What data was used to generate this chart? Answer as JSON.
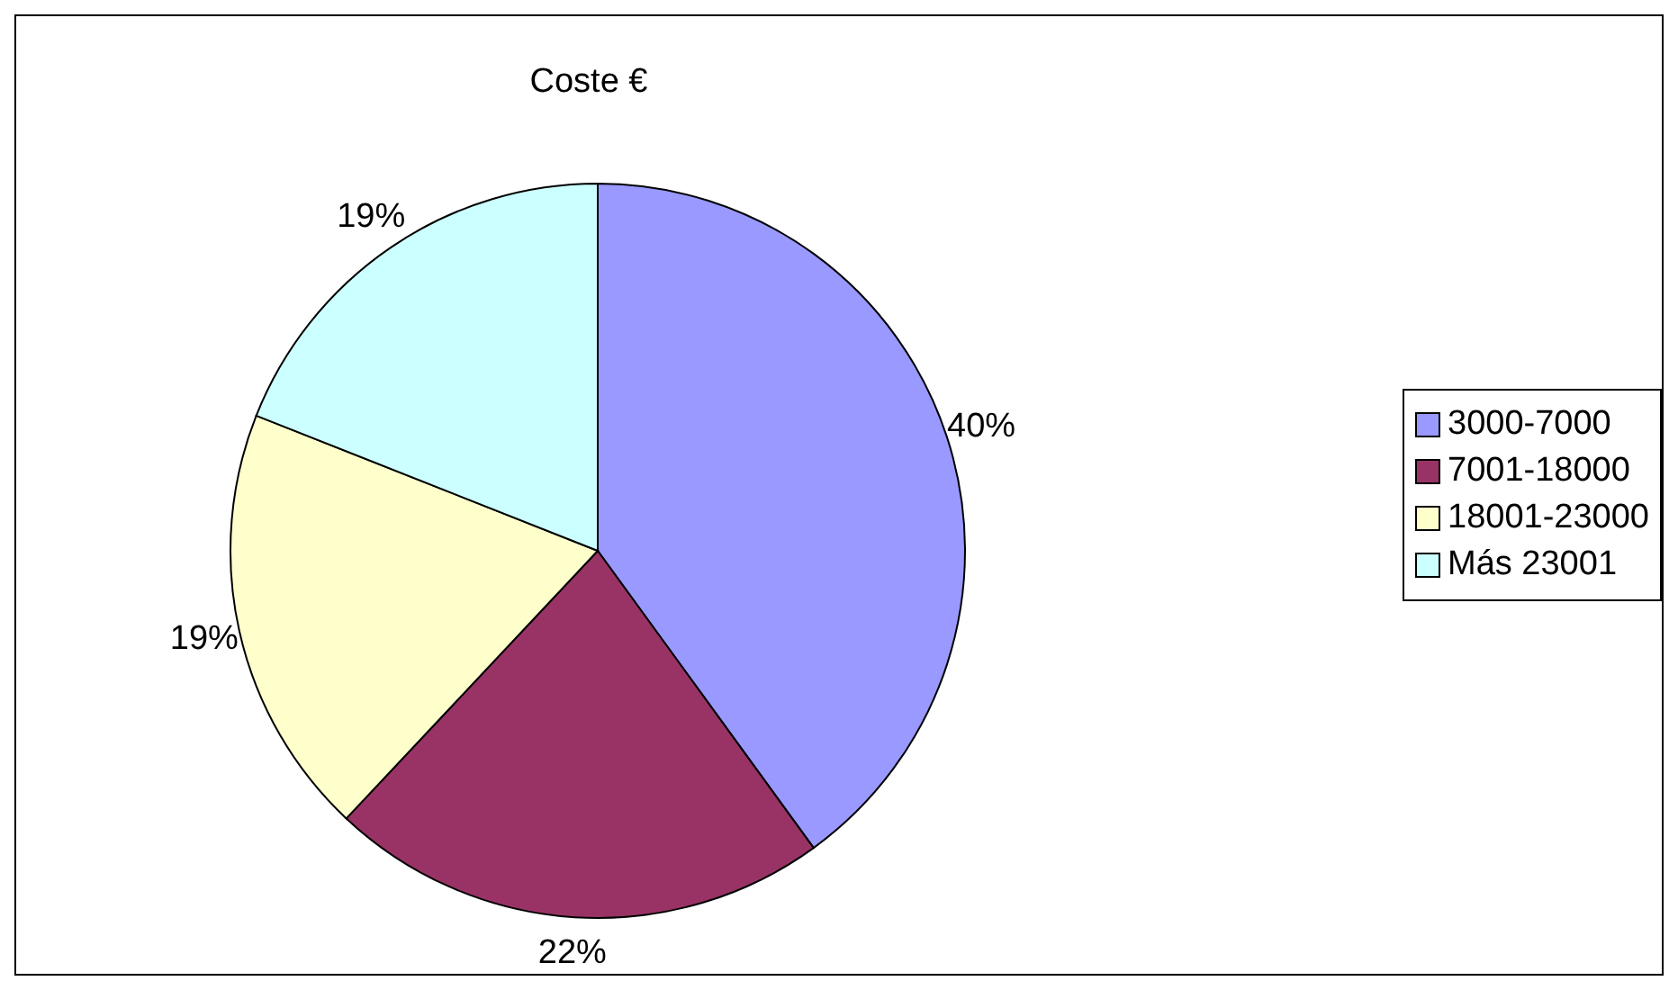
{
  "chart_data": {
    "type": "pie",
    "title": "Coste €",
    "categories": [
      "3000-7000",
      "7001-18000",
      "18001-23000",
      "Más 23001"
    ],
    "values": [
      40,
      22,
      19,
      19
    ],
    "value_labels": [
      "40%",
      "22%",
      "19%",
      "19%"
    ],
    "colors": [
      "#9999ff",
      "#993366",
      "#ffffcc",
      "#ccffff"
    ],
    "legend": "right"
  }
}
